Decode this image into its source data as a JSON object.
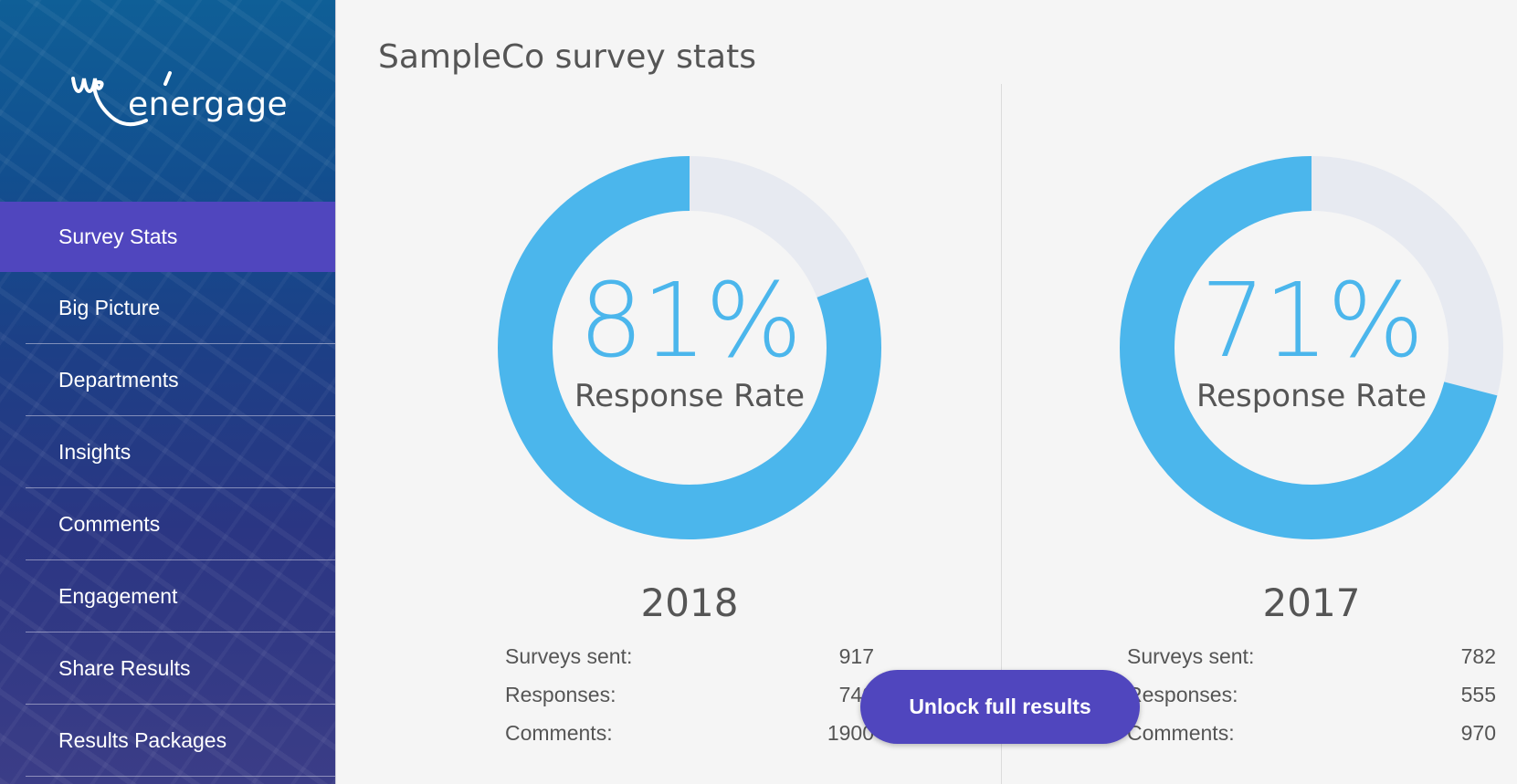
{
  "brand": {
    "logo_text": "energage"
  },
  "sidebar": {
    "items": [
      {
        "label": "Survey Stats",
        "active": true
      },
      {
        "label": "Big Picture"
      },
      {
        "label": "Departments"
      },
      {
        "label": "Insights"
      },
      {
        "label": "Comments"
      },
      {
        "label": "Engagement"
      },
      {
        "label": "Share Results"
      },
      {
        "label": "Results Packages"
      }
    ]
  },
  "main": {
    "title": "SampleCo survey stats",
    "panels": [
      {
        "year": "2018",
        "rate_value": 81,
        "rate_text": "81%",
        "rate_label": "Response Rate",
        "stats": [
          {
            "label": "Surveys sent:",
            "value": "917"
          },
          {
            "label": "Responses:",
            "value": "740"
          },
          {
            "label": "Comments:",
            "value": "1900"
          }
        ]
      },
      {
        "year": "2017",
        "rate_value": 71,
        "rate_text": "71%",
        "rate_label": "Response Rate",
        "stats": [
          {
            "label": "Surveys sent:",
            "value": "782"
          },
          {
            "label": "Responses:",
            "value": "555"
          },
          {
            "label": "Comments:",
            "value": "970"
          }
        ]
      }
    ],
    "unlock_label": "Unlock full results"
  },
  "colors": {
    "accent": "#5046be",
    "donut_fill": "#4bb6ec",
    "donut_track": "#e7eaf1"
  },
  "icons": {
    "logo": "energage-logo-icon"
  }
}
